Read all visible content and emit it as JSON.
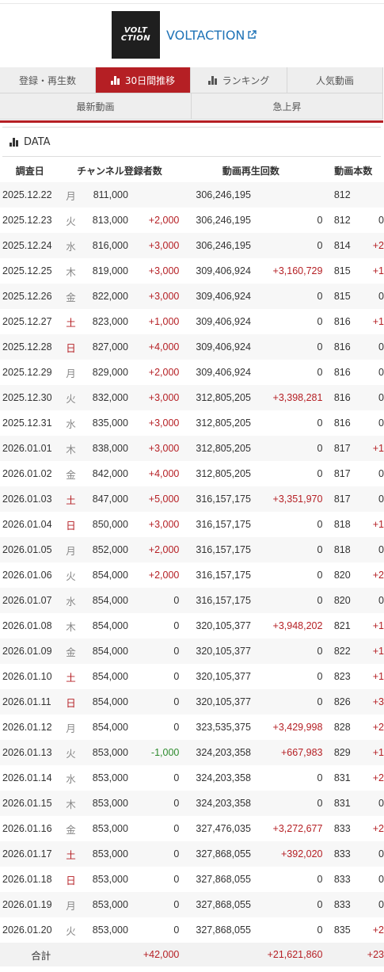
{
  "channel": {
    "logo_line1": "VOLT",
    "logo_line2": "CTION",
    "name": "VOLTACTION"
  },
  "tabs": {
    "row1": [
      {
        "label": "登録・再生数",
        "active": false,
        "icon": "",
        "width": 121
      },
      {
        "label": "30日間推移",
        "active": true,
        "icon": "bar-chart-icon",
        "width": 120
      },
      {
        "label": "ランキング",
        "active": false,
        "icon": "bar-chart-icon",
        "width": 122
      },
      {
        "label": "人気動画",
        "active": false,
        "icon": "",
        "width": 121
      }
    ],
    "row2": [
      {
        "label": "最新動画",
        "width": 242
      },
      {
        "label": "急上昇",
        "width": 242
      }
    ]
  },
  "section": {
    "title": "DATA"
  },
  "table": {
    "headers": [
      "調査日",
      "チャンネル登録者数",
      "動画再生回数",
      "動画本数"
    ],
    "rows": [
      [
        "2025.12.22",
        "月",
        "811,000",
        "",
        "306,246,195",
        "",
        "812",
        ""
      ],
      [
        "2025.12.23",
        "火",
        "813,000",
        "+2,000",
        "306,246,195",
        "0",
        "812",
        "0"
      ],
      [
        "2025.12.24",
        "水",
        "816,000",
        "+3,000",
        "306,246,195",
        "0",
        "814",
        "+2"
      ],
      [
        "2025.12.25",
        "木",
        "819,000",
        "+3,000",
        "309,406,924",
        "+3,160,729",
        "815",
        "+1"
      ],
      [
        "2025.12.26",
        "金",
        "822,000",
        "+3,000",
        "309,406,924",
        "0",
        "815",
        "0"
      ],
      [
        "2025.12.27",
        "土",
        "823,000",
        "+1,000",
        "309,406,924",
        "0",
        "816",
        "+1"
      ],
      [
        "2025.12.28",
        "日",
        "827,000",
        "+4,000",
        "309,406,924",
        "0",
        "816",
        "0"
      ],
      [
        "2025.12.29",
        "月",
        "829,000",
        "+2,000",
        "309,406,924",
        "0",
        "816",
        "0"
      ],
      [
        "2025.12.30",
        "火",
        "832,000",
        "+3,000",
        "312,805,205",
        "+3,398,281",
        "816",
        "0"
      ],
      [
        "2025.12.31",
        "水",
        "835,000",
        "+3,000",
        "312,805,205",
        "0",
        "816",
        "0"
      ],
      [
        "2026.01.01",
        "木",
        "838,000",
        "+3,000",
        "312,805,205",
        "0",
        "817",
        "+1"
      ],
      [
        "2026.01.02",
        "金",
        "842,000",
        "+4,000",
        "312,805,205",
        "0",
        "817",
        "0"
      ],
      [
        "2026.01.03",
        "土",
        "847,000",
        "+5,000",
        "316,157,175",
        "+3,351,970",
        "817",
        "0"
      ],
      [
        "2026.01.04",
        "日",
        "850,000",
        "+3,000",
        "316,157,175",
        "0",
        "818",
        "+1"
      ],
      [
        "2026.01.05",
        "月",
        "852,000",
        "+2,000",
        "316,157,175",
        "0",
        "818",
        "0"
      ],
      [
        "2026.01.06",
        "火",
        "854,000",
        "+2,000",
        "316,157,175",
        "0",
        "820",
        "+2"
      ],
      [
        "2026.01.07",
        "水",
        "854,000",
        "0",
        "316,157,175",
        "0",
        "820",
        "0"
      ],
      [
        "2026.01.08",
        "木",
        "854,000",
        "0",
        "320,105,377",
        "+3,948,202",
        "821",
        "+1"
      ],
      [
        "2026.01.09",
        "金",
        "854,000",
        "0",
        "320,105,377",
        "0",
        "822",
        "+1"
      ],
      [
        "2026.01.10",
        "土",
        "854,000",
        "0",
        "320,105,377",
        "0",
        "823",
        "+1"
      ],
      [
        "2026.01.11",
        "日",
        "854,000",
        "0",
        "320,105,377",
        "0",
        "826",
        "+3"
      ],
      [
        "2026.01.12",
        "月",
        "854,000",
        "0",
        "323,535,375",
        "+3,429,998",
        "828",
        "+2"
      ],
      [
        "2026.01.13",
        "火",
        "853,000",
        "-1,000",
        "324,203,358",
        "+667,983",
        "829",
        "+1"
      ],
      [
        "2026.01.14",
        "水",
        "853,000",
        "0",
        "324,203,358",
        "0",
        "831",
        "+2"
      ],
      [
        "2026.01.15",
        "木",
        "853,000",
        "0",
        "324,203,358",
        "0",
        "831",
        "0"
      ],
      [
        "2026.01.16",
        "金",
        "853,000",
        "0",
        "327,476,035",
        "+3,272,677",
        "833",
        "+2"
      ],
      [
        "2026.01.17",
        "土",
        "853,000",
        "0",
        "327,868,055",
        "+392,020",
        "833",
        "0"
      ],
      [
        "2026.01.18",
        "日",
        "853,000",
        "0",
        "327,868,055",
        "0",
        "833",
        "0"
      ],
      [
        "2026.01.19",
        "月",
        "853,000",
        "0",
        "327,868,055",
        "0",
        "833",
        "0"
      ],
      [
        "2026.01.20",
        "火",
        "853,000",
        "0",
        "327,868,055",
        "0",
        "835",
        "+2"
      ]
    ],
    "total": {
      "label": "合計",
      "subscribers_diff": "+42,000",
      "views_diff": "+21,621,860",
      "videos_diff": "+23"
    }
  },
  "colors": {
    "accent": "#b51f24",
    "link": "#1f73b7",
    "negative": "#2e8b2e"
  }
}
